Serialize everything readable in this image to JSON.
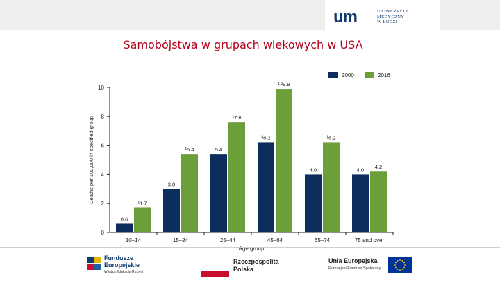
{
  "header": {
    "logo_mark": "um",
    "logo_text_lines": [
      "UNIWERSYTET",
      "MEDYCZNY",
      "W ŁODZI"
    ]
  },
  "slide_title": "Samobójstwa w grupach wiekowych w USA",
  "chart_data": {
    "type": "bar",
    "title": "",
    "xlabel": "Age group",
    "ylabel": "Deaths per 100,000 in specified group",
    "ylim": [
      0,
      10
    ],
    "yticks": [
      "0",
      "2",
      "4",
      "6",
      "8",
      "10"
    ],
    "categories": [
      "10–14",
      "15–24",
      "25–44",
      "45–64",
      "65–74",
      "75 and over"
    ],
    "series": [
      {
        "name": "2000",
        "color": "#0d2d5c",
        "values": [
          0.6,
          3.0,
          5.4,
          6.2,
          4.0,
          4.0
        ],
        "labels": [
          "0.6",
          "3.0",
          "5.4",
          "6.2",
          "4.0",
          "4.0"
        ],
        "sups": [
          "",
          "",
          "",
          "3",
          "",
          ""
        ]
      },
      {
        "name": "2016",
        "color": "#6a9f3a",
        "values": [
          1.7,
          5.4,
          7.6,
          9.9,
          6.2,
          4.2
        ],
        "labels": [
          "1.7",
          "5.4",
          "7.6",
          "9.9",
          "6.2",
          "4.2"
        ],
        "sups": [
          "1",
          "1",
          "1",
          "1,3",
          "1",
          ""
        ]
      }
    ],
    "legend": "top-right",
    "grid": false
  },
  "footer": {
    "fe_lines": [
      "Fundusze",
      "Europejskie",
      "Wiedza Edukacja Rozwój"
    ],
    "rp_lines": [
      "Rzeczpospolita",
      "Polska"
    ],
    "ue_lines": [
      "Unia Europejska",
      "Europejski Fundusz Społeczny"
    ]
  },
  "colors": {
    "title_red": "#b3001b",
    "bar_2000": "#0d2d5c",
    "bar_2016": "#6a9f3a"
  }
}
